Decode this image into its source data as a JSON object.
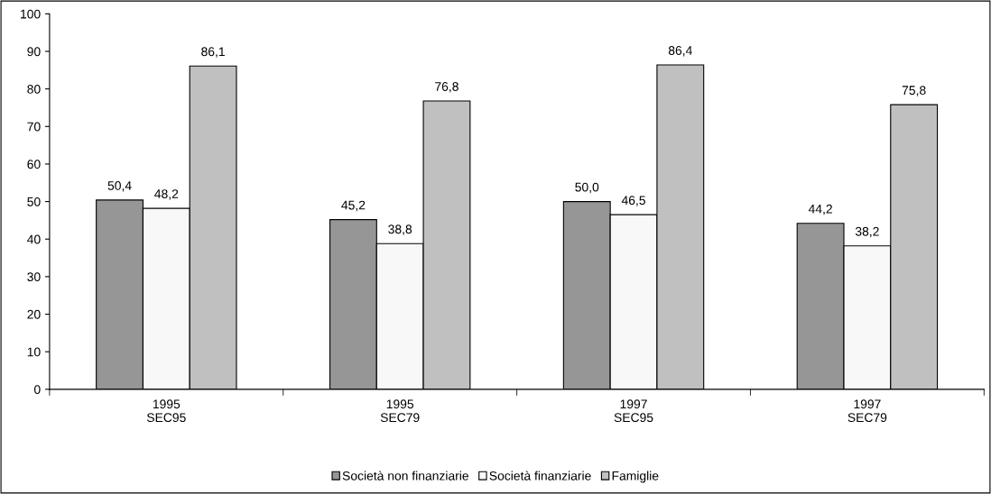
{
  "chart_data": {
    "type": "bar",
    "categories": [
      "1995\nSEC95",
      "1995\nSEC79",
      "1997\nSEC95",
      "1997\nSEC79"
    ],
    "series": [
      {
        "name": "Società non finanziarie",
        "color": "#969696",
        "values": [
          50.4,
          45.2,
          50.0,
          44.2
        ],
        "value_labels": [
          "50,4",
          "45,2",
          "50,0",
          "44,2"
        ]
      },
      {
        "name": "Società finanziarie",
        "color": "#f8f8f8",
        "values": [
          48.2,
          38.8,
          46.5,
          38.2
        ],
        "value_labels": [
          "48,2",
          "38,8",
          "46,5",
          "38,2"
        ]
      },
      {
        "name": "Famiglie",
        "color": "#c0c0c0",
        "values": [
          86.1,
          76.8,
          86.4,
          75.8
        ],
        "value_labels": [
          "86,1",
          "76,8",
          "86,4",
          "75,8"
        ]
      }
    ],
    "ylim": [
      0,
      100
    ],
    "yticks": [
      0,
      10,
      20,
      30,
      40,
      50,
      60,
      70,
      80,
      90,
      100
    ],
    "grid": false,
    "legend": "bottom"
  }
}
